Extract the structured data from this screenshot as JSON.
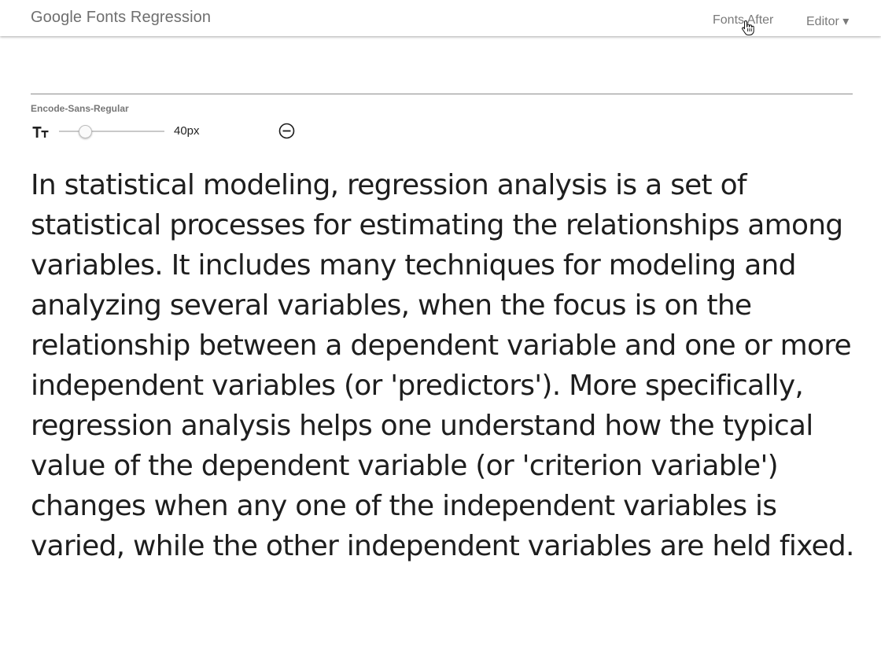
{
  "header": {
    "app_title": "Google Fonts Regression",
    "nav": {
      "fonts_after_label": "Fonts After",
      "editor_label": "Editor ▾"
    }
  },
  "font_panel": {
    "font_name": "Encode-Sans-Regular",
    "size_icon": "text-size-icon",
    "remove_icon": "minus-circle-icon",
    "size_slider": {
      "min": 8,
      "max": 200,
      "value": 40
    },
    "size_label": "40px"
  },
  "sample_text": "In statistical modeling, regression analysis is a set of statistical processes for estimating the relationships among variables. It includes many techniques for modeling and analyzing several variables, when the focus is on the relationship between a dependent variable and one or more independent variables (or 'predictors'). More specifically, regression analysis helps one understand how the typical value of the dependent variable (or 'criterion variable') changes when any one of the independent variables is varied, while the other independent variables are held fixed."
}
